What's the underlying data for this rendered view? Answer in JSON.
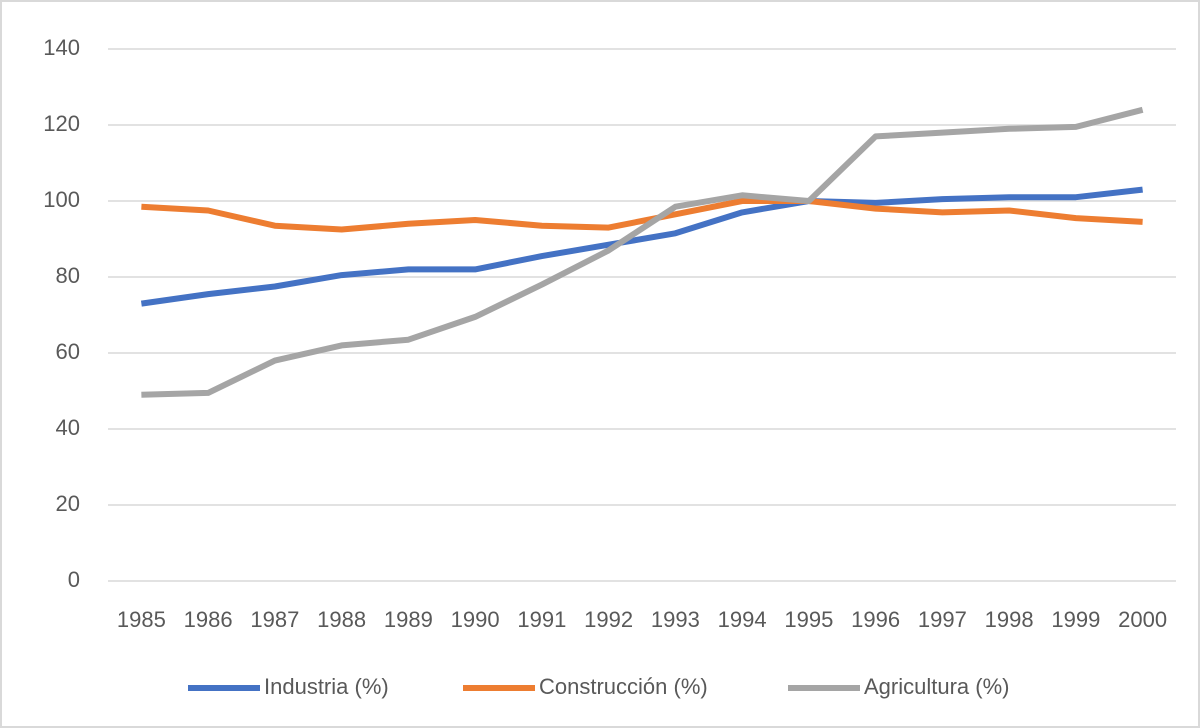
{
  "chart_data": {
    "type": "line",
    "categories": [
      "1985",
      "1986",
      "1987",
      "1988",
      "1989",
      "1990",
      "1991",
      "1992",
      "1993",
      "1994",
      "1995",
      "1996",
      "1997",
      "1998",
      "1999",
      "2000"
    ],
    "series": [
      {
        "name": "Industria (%)",
        "color": "#4472c4",
        "values": [
          73,
          75.5,
          77.5,
          80.5,
          82,
          82,
          85.5,
          88.5,
          91.5,
          97,
          100,
          99.5,
          100.5,
          101,
          101,
          103
        ]
      },
      {
        "name": "Construcción (%)",
        "color": "#ed7d31",
        "values": [
          98.5,
          97.5,
          93.5,
          92.5,
          94,
          95,
          93.5,
          93,
          96.5,
          100,
          100,
          98,
          97,
          97.5,
          95.5,
          94.5
        ]
      },
      {
        "name": "Agricultura (%)",
        "color": "#a5a5a5",
        "values": [
          49,
          49.5,
          58,
          62,
          63.5,
          69.5,
          78,
          87,
          98.5,
          101.5,
          100,
          117,
          118,
          119,
          119.5,
          124
        ]
      }
    ],
    "ylim": [
      0,
      140
    ],
    "yticks": [
      0,
      20,
      40,
      60,
      80,
      100,
      120,
      140
    ],
    "grid": true,
    "legend": "bottom"
  }
}
